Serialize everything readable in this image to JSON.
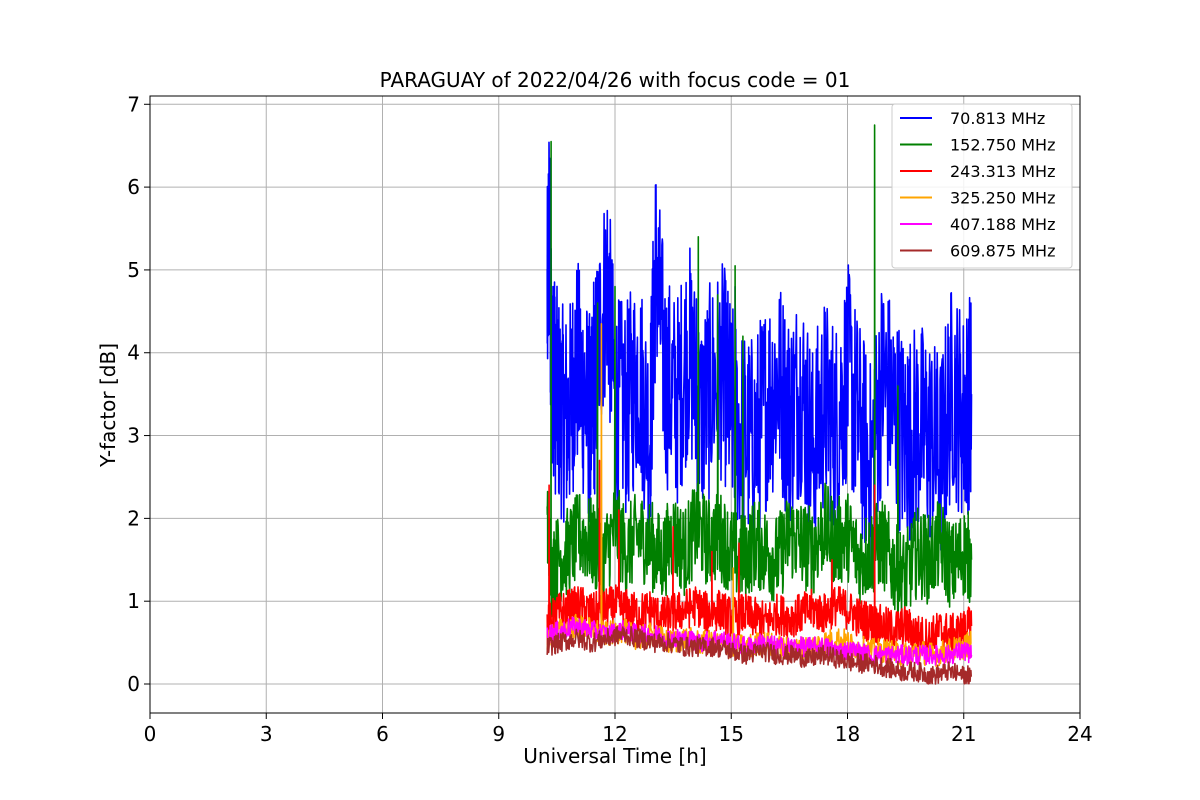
{
  "chart_data": {
    "type": "line",
    "title": "PARAGUAY of 2022/04/26 with focus code = 01",
    "xlabel": "Universal Time [h]",
    "ylabel": "Y-factor [dB]",
    "xlim": [
      0,
      24
    ],
    "ylim": [
      -0.35,
      7.1
    ],
    "xticks": [
      0,
      3,
      6,
      9,
      12,
      15,
      18,
      21,
      24
    ],
    "yticks": [
      0,
      1,
      2,
      3,
      4,
      5,
      6,
      7
    ],
    "grid": true,
    "legend_position": "top-right",
    "series": [
      {
        "name": " 70.813 MHz",
        "color": "#0000ff",
        "x": [
          10.25,
          10.3,
          10.35,
          10.45,
          10.6,
          10.8,
          11.0,
          11.2,
          11.4,
          11.55,
          11.8,
          12.0,
          12.3,
          12.6,
          12.9,
          13.05,
          13.3,
          13.6,
          13.9,
          14.2,
          14.5,
          14.8,
          15.0,
          15.3,
          15.6,
          15.9,
          16.2,
          16.5,
          16.8,
          17.1,
          17.4,
          17.7,
          18.0,
          18.3,
          18.6,
          18.9,
          19.2,
          19.5,
          19.8,
          20.1,
          20.4,
          20.7,
          21.0,
          21.2
        ],
        "y": [
          4.6,
          5.5,
          4.1,
          3.6,
          3.3,
          3.2,
          3.9,
          3.5,
          3.1,
          4.0,
          4.9,
          3.4,
          3.3,
          3.8,
          3.0,
          5.1,
          3.7,
          3.4,
          4.1,
          3.2,
          3.6,
          3.8,
          3.3,
          3.0,
          2.9,
          3.4,
          3.7,
          3.2,
          3.6,
          2.8,
          3.4,
          3.1,
          3.8,
          3.1,
          2.6,
          3.7,
          3.3,
          2.9,
          3.1,
          3.0,
          2.7,
          3.6,
          3.2,
          3.5
        ],
        "spikes": [
          [
            10.3,
            5.5
          ],
          [
            10.4,
            4.8
          ],
          [
            11.45,
            4.85
          ],
          [
            11.9,
            4.9
          ],
          [
            12.35,
            4.3
          ],
          [
            13.1,
            5.15
          ],
          [
            14.1,
            4.65
          ],
          [
            14.7,
            4.1
          ],
          [
            15.1,
            4.8
          ],
          [
            16.5,
            4.05
          ],
          [
            17.1,
            3.9
          ],
          [
            18.7,
            3.8
          ],
          [
            19.55,
            3.95
          ],
          [
            20.3,
            3.8
          ],
          [
            21.1,
            3.95
          ]
        ]
      },
      {
        "name": "152.750 MHz",
        "color": "#008000",
        "x": [
          10.25,
          10.35,
          10.5,
          10.8,
          11.1,
          11.4,
          11.7,
          12.0,
          12.3,
          12.6,
          12.9,
          13.2,
          13.5,
          13.8,
          14.1,
          14.4,
          14.7,
          15.0,
          15.3,
          15.6,
          15.9,
          16.2,
          16.5,
          16.8,
          17.1,
          17.4,
          17.7,
          18.0,
          18.3,
          18.6,
          18.9,
          19.2,
          19.5,
          19.8,
          20.1,
          20.4,
          20.7,
          21.0,
          21.2
        ],
        "y": [
          1.9,
          1.3,
          1.5,
          1.6,
          1.8,
          1.7,
          1.5,
          1.9,
          1.6,
          1.8,
          1.7,
          1.5,
          1.8,
          1.6,
          1.9,
          1.7,
          1.8,
          1.6,
          1.5,
          1.7,
          1.6,
          1.5,
          1.8,
          1.7,
          1.6,
          1.9,
          1.7,
          1.8,
          1.5,
          1.6,
          1.7,
          1.4,
          1.3,
          1.6,
          1.5,
          1.7,
          1.4,
          1.6,
          1.5
        ],
        "spikes": [
          [
            10.35,
            6.55
          ],
          [
            11.55,
            4.6
          ],
          [
            12.0,
            4.8
          ],
          [
            14.15,
            5.4
          ],
          [
            14.65,
            4.7
          ],
          [
            15.1,
            5.05
          ],
          [
            15.3,
            4.2
          ],
          [
            18.7,
            6.75
          ],
          [
            19.3,
            3.6
          ]
        ]
      },
      {
        "name": "243.313 MHz",
        "color": "#ff0000",
        "x": [
          10.25,
          10.5,
          10.8,
          11.1,
          11.4,
          11.7,
          12.0,
          12.3,
          12.6,
          12.9,
          13.2,
          13.5,
          13.8,
          14.1,
          14.4,
          14.7,
          15.0,
          15.3,
          15.6,
          15.9,
          16.2,
          16.5,
          16.8,
          17.1,
          17.4,
          17.7,
          18.0,
          18.3,
          18.6,
          18.9,
          19.2,
          19.5,
          19.8,
          20.1,
          20.4,
          20.7,
          21.0,
          21.2
        ],
        "y": [
          0.7,
          0.85,
          0.9,
          0.95,
          0.85,
          0.9,
          0.95,
          0.9,
          0.85,
          0.9,
          0.8,
          0.85,
          0.9,
          0.95,
          0.85,
          0.9,
          0.8,
          0.85,
          0.8,
          0.75,
          0.85,
          0.8,
          0.85,
          0.9,
          0.85,
          0.95,
          0.9,
          0.8,
          0.75,
          0.7,
          0.65,
          0.7,
          0.6,
          0.55,
          0.65,
          0.6,
          0.65,
          0.7
        ],
        "spikes": [
          [
            10.3,
            2.4
          ],
          [
            11.6,
            2.7
          ],
          [
            12.1,
            2.1
          ],
          [
            13.5,
            1.9
          ],
          [
            14.5,
            1.6
          ],
          [
            15.2,
            1.7
          ],
          [
            17.6,
            1.5
          ],
          [
            18.7,
            2.4
          ]
        ]
      },
      {
        "name": "325.250 MHz",
        "color": "#ffa500",
        "x": [
          10.25,
          10.6,
          11.0,
          11.4,
          11.8,
          12.2,
          12.6,
          13.0,
          13.4,
          13.8,
          14.2,
          14.6,
          15.0,
          15.4,
          15.8,
          16.2,
          16.6,
          17.0,
          17.4,
          17.8,
          18.2,
          18.6,
          19.0,
          19.4,
          19.8,
          20.2,
          20.6,
          21.0,
          21.2
        ],
        "y": [
          0.55,
          0.65,
          0.7,
          0.65,
          0.6,
          0.65,
          0.55,
          0.6,
          0.5,
          0.55,
          0.5,
          0.5,
          0.45,
          0.45,
          0.5,
          0.45,
          0.4,
          0.45,
          0.5,
          0.55,
          0.45,
          0.4,
          0.4,
          0.35,
          0.4,
          0.35,
          0.4,
          0.45,
          0.5
        ],
        "spikes": [
          [
            11.65,
            4.35
          ],
          [
            15.05,
            1.4
          ]
        ]
      },
      {
        "name": "407.188 MHz",
        "color": "#ff00ff",
        "x": [
          10.25,
          10.6,
          11.0,
          11.4,
          11.8,
          12.2,
          12.6,
          13.0,
          13.4,
          13.8,
          14.2,
          14.6,
          15.0,
          15.4,
          15.8,
          16.2,
          16.6,
          17.0,
          17.4,
          17.8,
          18.2,
          18.6,
          19.0,
          19.4,
          19.8,
          20.2,
          20.6,
          21.0,
          21.2
        ],
        "y": [
          0.6,
          0.65,
          0.7,
          0.65,
          0.6,
          0.65,
          0.6,
          0.6,
          0.55,
          0.55,
          0.5,
          0.55,
          0.5,
          0.45,
          0.5,
          0.45,
          0.45,
          0.45,
          0.45,
          0.4,
          0.4,
          0.35,
          0.35,
          0.35,
          0.35,
          0.35,
          0.35,
          0.4,
          0.35
        ],
        "spikes": []
      },
      {
        "name": "609.875 MHz",
        "color": "#a52a2a",
        "x": [
          10.25,
          10.6,
          11.0,
          11.4,
          11.8,
          12.2,
          12.6,
          13.0,
          13.4,
          13.8,
          14.2,
          14.6,
          15.0,
          15.4,
          15.8,
          16.2,
          16.6,
          17.0,
          17.4,
          17.8,
          18.2,
          18.6,
          19.0,
          19.4,
          19.8,
          20.2,
          20.6,
          21.0,
          21.2
        ],
        "y": [
          0.45,
          0.5,
          0.55,
          0.5,
          0.55,
          0.6,
          0.55,
          0.5,
          0.5,
          0.45,
          0.45,
          0.45,
          0.4,
          0.35,
          0.4,
          0.35,
          0.35,
          0.3,
          0.35,
          0.3,
          0.25,
          0.25,
          0.2,
          0.15,
          0.15,
          0.1,
          0.15,
          0.1,
          0.1
        ],
        "spikes": []
      }
    ]
  }
}
